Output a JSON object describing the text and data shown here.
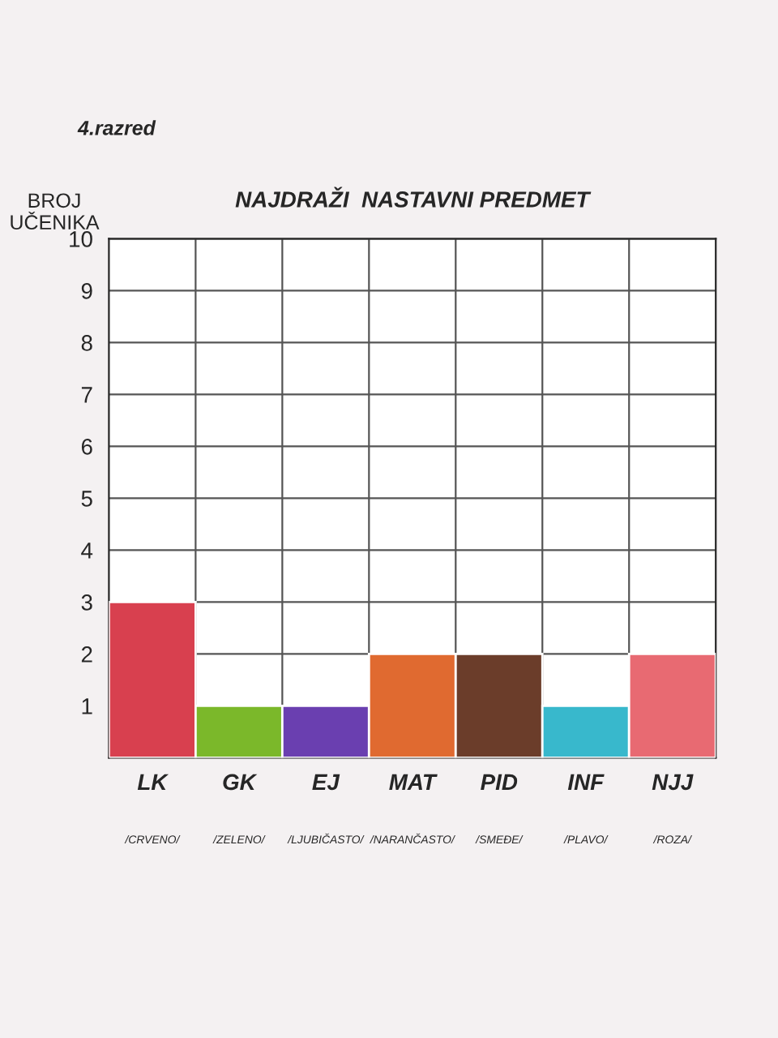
{
  "chart_data": {
    "type": "bar",
    "subtitle": "4.razred",
    "title": "NAJDRAŽI  NASTAVNI PREDMET",
    "ylabel": "BROJ\nUČENIKA",
    "categories": [
      "LK",
      "GK",
      "EJ",
      "MAT",
      "PID",
      "INF",
      "NJJ"
    ],
    "values": [
      3,
      1,
      1,
      2,
      2,
      1,
      2
    ],
    "colors": [
      "#d8404f",
      "#7bb82a",
      "#6a3fb0",
      "#e06a30",
      "#6b3d2a",
      "#38b8cc",
      "#e86a72"
    ],
    "ylim": [
      0,
      10
    ],
    "yticks": [
      1,
      2,
      3,
      4,
      5,
      6,
      7,
      8,
      9,
      10
    ],
    "grid": true,
    "annotations": [
      "/CRVENO/",
      "/ZELENO/",
      "/LJUBIČASTO/",
      "/NARANČASTO/",
      "/SMEĐE/",
      "/PLAVO/",
      "/ROZA/"
    ]
  }
}
